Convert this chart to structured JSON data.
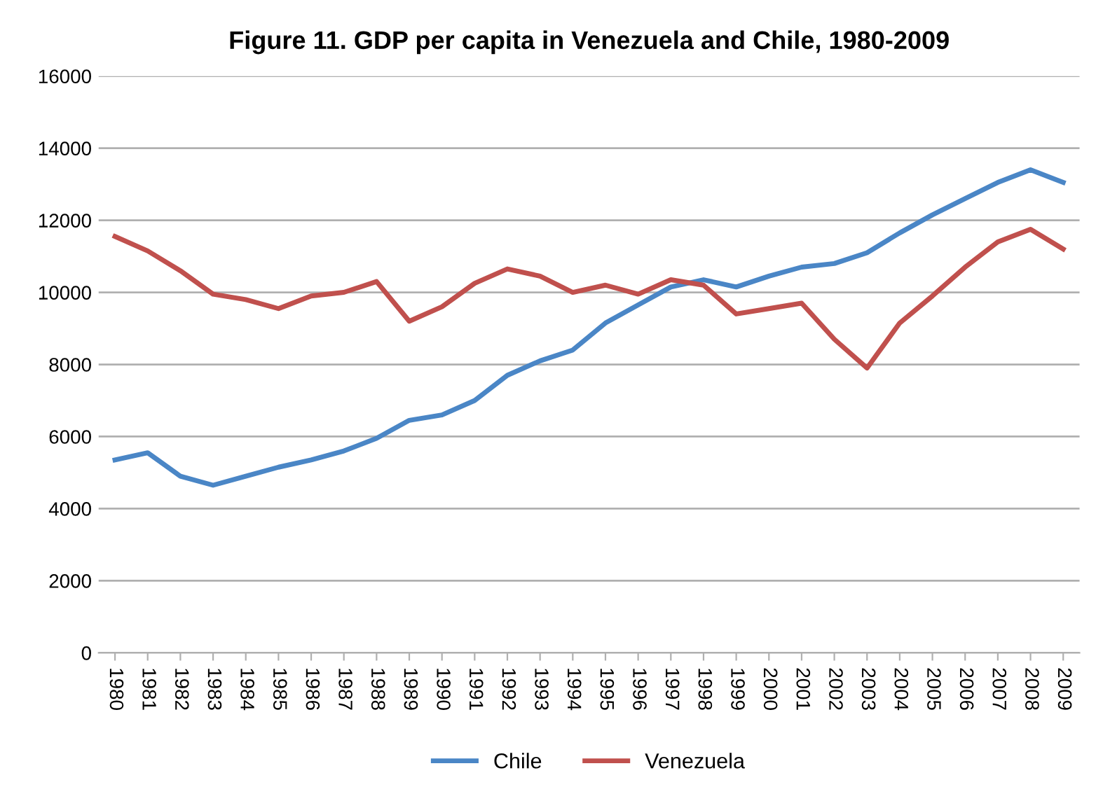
{
  "chart_data": {
    "type": "line",
    "title": "Figure 11. GDP per capita in Venezuela and Chile, 1980-2009",
    "categories": [
      "1980",
      "1981",
      "1982",
      "1983",
      "1984",
      "1985",
      "1986",
      "1987",
      "1988",
      "1989",
      "1990",
      "1991",
      "1992",
      "1993",
      "1994",
      "1995",
      "1996",
      "1997",
      "1998",
      "1999",
      "2000",
      "2001",
      "2002",
      "2003",
      "2004",
      "2005",
      "2006",
      "2007",
      "2008",
      "2009"
    ],
    "series": [
      {
        "name": "Chile",
        "color": "#4a86c6",
        "values": [
          5350,
          5550,
          4900,
          4650,
          4900,
          5150,
          5350,
          5600,
          5950,
          6450,
          6600,
          7000,
          7700,
          8100,
          8400,
          9150,
          9650,
          10150,
          10350,
          10150,
          10450,
          10700,
          10800,
          11100,
          11650,
          12150,
          12600,
          13050,
          13400,
          13050
        ]
      },
      {
        "name": "Venezuela",
        "color": "#c0504d",
        "values": [
          11550,
          11150,
          10600,
          9950,
          9800,
          9550,
          9900,
          10000,
          10300,
          9200,
          9600,
          10250,
          10650,
          10450,
          10000,
          10200,
          9950,
          10350,
          10200,
          9400,
          9550,
          9700,
          8700,
          7900,
          9150,
          9900,
          10700,
          11400,
          11750,
          11200
        ]
      }
    ],
    "ylim": [
      0,
      16000
    ],
    "yticks": [
      0,
      2000,
      4000,
      6000,
      8000,
      10000,
      12000,
      14000,
      16000
    ],
    "grid": "y",
    "legend": "bottom",
    "marker": "none",
    "line_style": "solid"
  }
}
